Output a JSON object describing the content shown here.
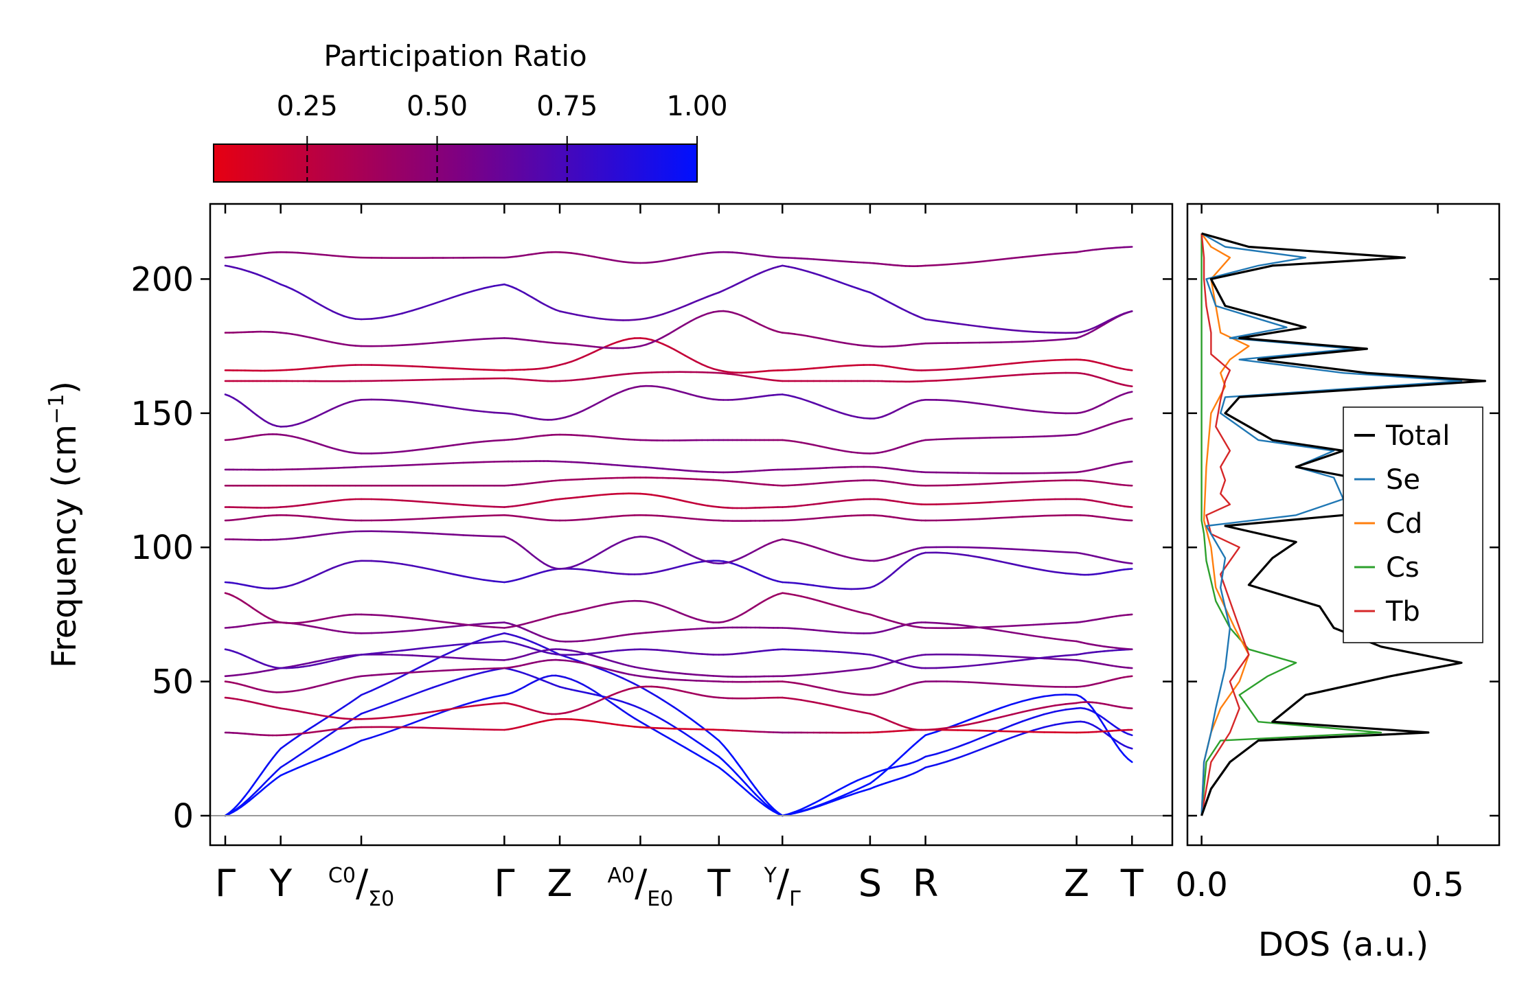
{
  "colors": {
    "pr_low": "#e60012",
    "pr_high": "#0010ff",
    "total": "#000000",
    "Se": "#1f77b4",
    "Cd": "#ff7f0e",
    "Cs": "#2ca02c",
    "Tb": "#d62728",
    "zero_line": "#999999"
  },
  "colorbar": {
    "title": "Participation Ratio",
    "range": [
      0.07,
      1.0
    ],
    "ticks": [
      0.25,
      0.5,
      0.75,
      1.0
    ],
    "tick_labels": [
      "0.25",
      "0.50",
      "0.75",
      "1.00"
    ]
  },
  "chart_data": [
    {
      "type": "line",
      "title": "",
      "ylabel": "Frequency (cm",
      "ylabel_sup": "−1",
      "ylabel_close": ")",
      "ylim": [
        -11,
        228
      ],
      "yticks": [
        0,
        50,
        100,
        150,
        200
      ],
      "ytick_labels": [
        "0",
        "50",
        "100",
        "150",
        "200"
      ],
      "xlim": [
        -0.15,
        9.4
      ],
      "segments": [
        [
          0,
          2.77
        ],
        [
          2.77,
          5.53
        ],
        [
          5.53,
          9.0
        ]
      ],
      "kpoints": [
        {
          "x": 0,
          "label": "Γ"
        },
        {
          "x": 0.55,
          "label": "Y"
        },
        {
          "x": 1.35,
          "label": "C₀/Σ₀",
          "a": "C",
          "asub": "0",
          "b": "Σ",
          "bsub": "0"
        },
        {
          "x": 2.77,
          "label": "Γ"
        },
        {
          "x": 3.32,
          "label": "Z"
        },
        {
          "x": 4.12,
          "label": "A₀/E₀",
          "a": "A",
          "asub": "0",
          "b": "E",
          "bsub": "0"
        },
        {
          "x": 4.9,
          "label": "T"
        },
        {
          "x": 5.53,
          "label": "Y/Γ",
          "a": "Y",
          "b": "Γ"
        },
        {
          "x": 6.4,
          "label": "S"
        },
        {
          "x": 6.95,
          "label": "R"
        },
        {
          "x": 8.45,
          "label": "Z"
        },
        {
          "x": 9.0,
          "label": "T"
        }
      ],
      "bands": [
        {
          "y": [
            0,
            25,
            45,
            68,
            60,
            48,
            28,
            0,
            10,
            18,
            35,
            25,
            22
          ],
          "pr": [
            1.0,
            0.95,
            0.9,
            0.8,
            0.85,
            0.9,
            1.0,
            1.0,
            1.0,
            0.95,
            0.9,
            0.85,
            0.85
          ]
        },
        {
          "y": [
            0,
            18,
            38,
            55,
            48,
            40,
            22,
            0,
            15,
            22,
            40,
            30,
            27
          ],
          "pr": [
            1.0,
            0.95,
            0.92,
            0.85,
            0.85,
            0.9,
            1.0,
            1.0,
            1.0,
            0.95,
            0.92,
            0.9,
            0.9
          ]
        },
        {
          "y": [
            0,
            15,
            28,
            45,
            52,
            35,
            18,
            0,
            12,
            30,
            45,
            20,
            18
          ],
          "pr": [
            1.0,
            1.0,
            0.95,
            0.95,
            0.9,
            0.95,
            1.0,
            1.0,
            1.0,
            1.0,
            0.95,
            1.0,
            1.0
          ]
        },
        {
          "y": [
            31,
            30,
            33,
            32,
            36,
            33,
            32,
            31,
            31,
            32,
            31,
            32,
            28
          ],
          "pr": [
            0.5,
            0.4,
            0.3,
            0.2,
            0.15,
            0.15,
            0.15,
            0.5,
            0.2,
            0.15,
            0.15,
            0.2,
            0.5
          ]
        },
        {
          "y": [
            44,
            40,
            36,
            42,
            38,
            48,
            44,
            44,
            38,
            32,
            42,
            40,
            38
          ],
          "pr": [
            0.3,
            0.3,
            0.25,
            0.2,
            0.3,
            0.35,
            0.4,
            0.3,
            0.3,
            0.25,
            0.35,
            0.4,
            0.4
          ]
        },
        {
          "y": [
            50,
            46,
            52,
            55,
            58,
            52,
            50,
            50,
            45,
            50,
            48,
            52,
            47
          ],
          "pr": [
            0.4,
            0.45,
            0.5,
            0.45,
            0.5,
            0.55,
            0.5,
            0.4,
            0.45,
            0.5,
            0.45,
            0.4,
            0.4
          ]
        },
        {
          "y": [
            52,
            55,
            60,
            58,
            62,
            55,
            52,
            52,
            55,
            60,
            58,
            55,
            52
          ],
          "pr": [
            0.55,
            0.6,
            0.65,
            0.6,
            0.65,
            0.6,
            0.55,
            0.55,
            0.6,
            0.65,
            0.6,
            0.55,
            0.55
          ]
        },
        {
          "y": [
            62,
            55,
            60,
            65,
            60,
            62,
            60,
            62,
            60,
            55,
            60,
            62,
            60
          ],
          "pr": [
            0.75,
            0.7,
            0.7,
            0.75,
            0.7,
            0.7,
            0.65,
            0.75,
            0.7,
            0.65,
            0.7,
            0.75,
            0.75
          ]
        },
        {
          "y": [
            70,
            72,
            68,
            72,
            65,
            68,
            70,
            70,
            68,
            72,
            65,
            62,
            65
          ],
          "pr": [
            0.55,
            0.5,
            0.55,
            0.6,
            0.55,
            0.5,
            0.55,
            0.55,
            0.6,
            0.55,
            0.5,
            0.55,
            0.55
          ]
        },
        {
          "y": [
            83,
            72,
            75,
            70,
            75,
            80,
            72,
            83,
            75,
            70,
            72,
            75,
            70
          ],
          "pr": [
            0.4,
            0.45,
            0.5,
            0.5,
            0.45,
            0.5,
            0.5,
            0.4,
            0.45,
            0.5,
            0.55,
            0.5,
            0.5
          ]
        },
        {
          "y": [
            87,
            85,
            95,
            87,
            92,
            90,
            95,
            87,
            85,
            98,
            90,
            92,
            94
          ],
          "pr": [
            0.8,
            0.75,
            0.7,
            0.8,
            0.75,
            0.7,
            0.8,
            0.8,
            0.75,
            0.7,
            0.75,
            0.8,
            0.8
          ]
        },
        {
          "y": [
            103,
            103,
            106,
            104,
            92,
            104,
            94,
            103,
            95,
            100,
            98,
            94,
            94
          ],
          "pr": [
            0.5,
            0.55,
            0.6,
            0.55,
            0.65,
            0.6,
            0.65,
            0.5,
            0.55,
            0.6,
            0.6,
            0.6,
            0.65
          ]
        },
        {
          "y": [
            110,
            112,
            110,
            112,
            110,
            112,
            110,
            110,
            112,
            110,
            112,
            110,
            110
          ],
          "pr": [
            0.45,
            0.4,
            0.45,
            0.4,
            0.45,
            0.4,
            0.45,
            0.45,
            0.4,
            0.45,
            0.4,
            0.45,
            0.45
          ]
        },
        {
          "y": [
            115,
            115,
            118,
            115,
            118,
            120,
            115,
            115,
            118,
            116,
            118,
            115,
            115
          ],
          "pr": [
            0.3,
            0.3,
            0.25,
            0.3,
            0.25,
            0.2,
            0.25,
            0.3,
            0.3,
            0.25,
            0.3,
            0.3,
            0.3
          ]
        },
        {
          "y": [
            123,
            123,
            123,
            123,
            125,
            126,
            125,
            123,
            125,
            123,
            125,
            123,
            123
          ],
          "pr": [
            0.4,
            0.35,
            0.4,
            0.45,
            0.4,
            0.35,
            0.4,
            0.4,
            0.45,
            0.4,
            0.35,
            0.4,
            0.4
          ]
        },
        {
          "y": [
            129,
            129,
            130,
            132,
            132,
            130,
            128,
            129,
            130,
            128,
            128,
            132,
            132
          ],
          "pr": [
            0.55,
            0.5,
            0.55,
            0.5,
            0.55,
            0.6,
            0.55,
            0.55,
            0.5,
            0.55,
            0.5,
            0.55,
            0.55
          ]
        },
        {
          "y": [
            140,
            142,
            135,
            140,
            142,
            140,
            140,
            140,
            135,
            140,
            142,
            148,
            148
          ],
          "pr": [
            0.45,
            0.5,
            0.55,
            0.5,
            0.45,
            0.5,
            0.55,
            0.45,
            0.5,
            0.5,
            0.55,
            0.5,
            0.5
          ]
        },
        {
          "y": [
            157,
            145,
            155,
            150,
            148,
            160,
            155,
            157,
            148,
            155,
            150,
            158,
            158
          ],
          "pr": [
            0.7,
            0.65,
            0.6,
            0.65,
            0.6,
            0.55,
            0.6,
            0.7,
            0.65,
            0.6,
            0.55,
            0.55,
            0.55
          ]
        },
        {
          "y": [
            162,
            162,
            162,
            163,
            162,
            165,
            165,
            162,
            162,
            162,
            165,
            160,
            160
          ],
          "pr": [
            0.25,
            0.25,
            0.3,
            0.25,
            0.3,
            0.3,
            0.35,
            0.25,
            0.3,
            0.25,
            0.3,
            0.3,
            0.3
          ]
        },
        {
          "y": [
            166,
            166,
            168,
            166,
            168,
            178,
            166,
            166,
            168,
            166,
            170,
            166,
            166
          ],
          "pr": [
            0.2,
            0.2,
            0.25,
            0.2,
            0.25,
            0.2,
            0.25,
            0.2,
            0.2,
            0.25,
            0.2,
            0.25,
            0.25
          ]
        },
        {
          "y": [
            180,
            180,
            175,
            178,
            176,
            175,
            188,
            180,
            175,
            176,
            178,
            188,
            188
          ],
          "pr": [
            0.45,
            0.5,
            0.5,
            0.55,
            0.5,
            0.55,
            0.5,
            0.45,
            0.5,
            0.5,
            0.55,
            0.5,
            0.5
          ]
        },
        {
          "y": [
            205,
            198,
            185,
            198,
            188,
            185,
            195,
            205,
            195,
            185,
            180,
            188,
            188
          ],
          "pr": [
            0.7,
            0.75,
            0.7,
            0.75,
            0.7,
            0.65,
            0.7,
            0.7,
            0.75,
            0.7,
            0.65,
            0.6,
            0.6
          ]
        },
        {
          "y": [
            208,
            210,
            208,
            208,
            210,
            206,
            210,
            208,
            206,
            205,
            210,
            212,
            212
          ],
          "pr": [
            0.55,
            0.5,
            0.45,
            0.5,
            0.45,
            0.5,
            0.55,
            0.55,
            0.5,
            0.45,
            0.5,
            0.55,
            0.55
          ]
        }
      ]
    },
    {
      "type": "line",
      "xlabel": "DOS (a.u.)",
      "xlim": [
        -0.03,
        0.63
      ],
      "xticks": [
        0.0,
        0.5
      ],
      "xtick_labels": [
        "0.0",
        "0.5"
      ],
      "ylim": [
        -11,
        228
      ],
      "legend_position": "center-right",
      "series": [
        {
          "name": "Total",
          "y": [
            0,
            10,
            20,
            28,
            31,
            35,
            45,
            52,
            57,
            63,
            70,
            78,
            86,
            96,
            102,
            108,
            112,
            118,
            126,
            130,
            136,
            140,
            150,
            156,
            162,
            165,
            170,
            174,
            178,
            182,
            190,
            200,
            205,
            208,
            212,
            217
          ],
          "x": [
            0.0,
            0.02,
            0.06,
            0.12,
            0.48,
            0.15,
            0.22,
            0.4,
            0.55,
            0.38,
            0.28,
            0.25,
            0.1,
            0.15,
            0.2,
            0.05,
            0.3,
            0.4,
            0.32,
            0.2,
            0.3,
            0.15,
            0.05,
            0.08,
            0.6,
            0.35,
            0.12,
            0.35,
            0.08,
            0.22,
            0.05,
            0.02,
            0.15,
            0.43,
            0.1,
            0.0
          ]
        },
        {
          "name": "Se",
          "y": [
            0,
            20,
            31,
            40,
            55,
            70,
            85,
            96,
            102,
            108,
            112,
            118,
            126,
            130,
            136,
            140,
            150,
            156,
            162,
            165,
            170,
            174,
            178,
            182,
            190,
            200,
            205,
            208,
            212,
            217
          ],
          "x": [
            0.0,
            0.005,
            0.02,
            0.03,
            0.05,
            0.06,
            0.04,
            0.05,
            0.03,
            0.01,
            0.2,
            0.3,
            0.28,
            0.2,
            0.28,
            0.12,
            0.04,
            0.05,
            0.55,
            0.3,
            0.08,
            0.32,
            0.06,
            0.18,
            0.03,
            0.01,
            0.12,
            0.22,
            0.05,
            0.0
          ]
        },
        {
          "name": "Cd",
          "y": [
            0,
            20,
            31,
            40,
            50,
            60,
            70,
            85,
            100,
            110,
            130,
            150,
            160,
            165,
            170,
            175,
            180,
            190,
            200,
            208,
            212,
            217
          ],
          "x": [
            0.0,
            0.005,
            0.02,
            0.04,
            0.08,
            0.1,
            0.07,
            0.03,
            0.02,
            0.005,
            0.01,
            0.02,
            0.05,
            0.04,
            0.06,
            0.1,
            0.04,
            0.03,
            0.02,
            0.06,
            0.02,
            0.0
          ]
        },
        {
          "name": "Cs",
          "y": [
            0,
            20,
            28,
            31,
            35,
            45,
            52,
            57,
            62,
            70,
            80,
            95,
            105,
            110,
            150,
            200,
            217
          ],
          "x": [
            0.0,
            0.01,
            0.04,
            0.38,
            0.12,
            0.08,
            0.14,
            0.2,
            0.1,
            0.06,
            0.03,
            0.01,
            0.005,
            0.0,
            0.0,
            0.0,
            0.0
          ]
        },
        {
          "name": "Tb",
          "y": [
            0,
            20,
            31,
            40,
            50,
            60,
            70,
            80,
            90,
            100,
            105,
            112,
            116,
            120,
            125,
            130,
            136,
            145,
            155,
            162,
            166,
            172,
            180,
            190,
            200,
            208,
            217
          ],
          "x": [
            0.0,
            0.02,
            0.06,
            0.08,
            0.06,
            0.1,
            0.08,
            0.06,
            0.04,
            0.08,
            0.02,
            0.01,
            0.06,
            0.04,
            0.05,
            0.04,
            0.06,
            0.03,
            0.04,
            0.05,
            0.06,
            0.02,
            0.02,
            0.01,
            0.005,
            0.005,
            0.0
          ]
        }
      ]
    }
  ]
}
